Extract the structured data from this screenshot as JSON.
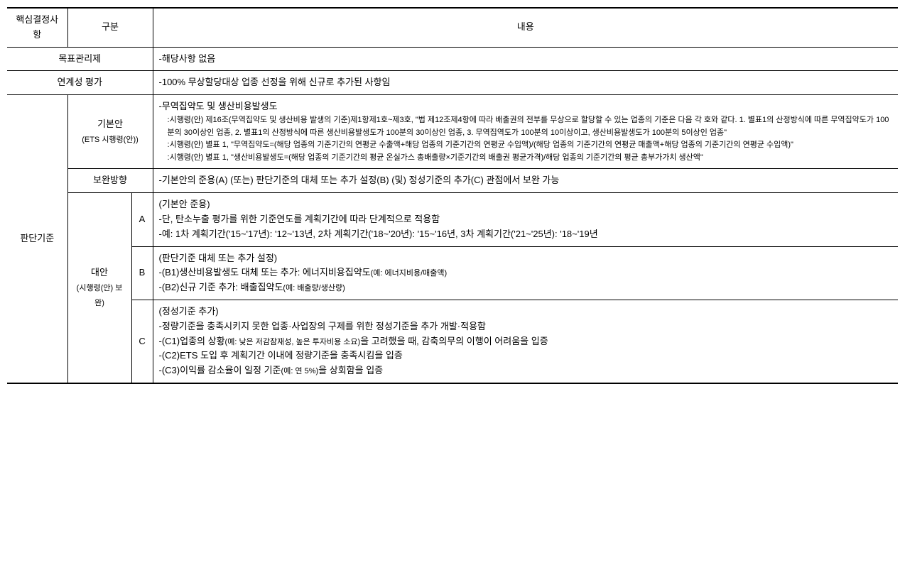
{
  "header": {
    "col1": "핵심결정사항",
    "col2": "구분",
    "col3": "내용"
  },
  "row_target": {
    "label": "목표관리제",
    "content": "-해당사항 없음"
  },
  "row_linkage": {
    "label": "연계성 평가",
    "content": "-100% 무상할당대상 업종 선정을 위해 신규로 추가된 사항임"
  },
  "criteria_label": "판단기준",
  "basic": {
    "label_main": "기본안",
    "label_sub": "(ETS 시행령(안))",
    "line1": "-무역집약도 및 생산비용발생도",
    "line2": ":시행령(안) 제16조(무역집약도 및 생산비용 발생의 기준)제1항제1호~제3호, \"법 제12조제4항에 따라 배출권의 전부를 무상으로 할당할 수 있는 업종의 기준은 다음 각 호와 같다. 1. 별표1의 산정방식에 따른 무역집약도가 100분의 30이상인 업종, 2. 별표1의 산정방식에 따른 생산비용발생도가 100분의 30이상인 업종, 3. 무역집역도가 100분의 10이상이고, 생산비용발생도가 100분의 5이상인 업종\"",
    "line3": ":시행령(안) 별표 1, \"무역집약도=(해당 업종의 기준기간의 연평균 수출액+해당 업종의 기준기간의 연평균 수입액)/(해당 업종의 기준기간의 연평균 매출액+해당 업종의 기준기간의 연평균 수입액)\"",
    "line4": ":시행령(안) 별표 1, \"생산비용발생도=(해당 업종의 기준기간의 평균 온실가스 총배출량×기준기간의 배출권 평균가격)/해당 업종의 기준기간의 평균 총부가가치 생산액\""
  },
  "supplement": {
    "label": "보완방향",
    "content": "-기본안의 준용(A) (또는) 판단기준의 대체 또는 추가 설정(B) (및) 정성기준의 추가(C) 관점에서 보완 가능"
  },
  "alternative": {
    "label_main": "대안",
    "label_sub": "(시행령(안) 보완)",
    "a": {
      "tag": "A",
      "line1": "(기본안 준용)",
      "line2": "-단, 탄소누출 평가를 위한 기준연도를 계획기간에 따라 단계적으로 적용함",
      "line3": "-예: 1차 계획기간('15~'17년): '12~'13년, 2차 계획기간('18~'20년): '15~'16년, 3차 계획기간('21~'25년): '18~'19년"
    },
    "b": {
      "tag": "B",
      "line1": "(판단기준 대체 또는 추가 설정)",
      "line2_prefix": "-(B1)생산비용발생도 대체 또는 추가: 에너지비용집약도",
      "line2_small": "(예: 에너지비용/매출액)",
      "line3_prefix": "-(B2)신규 기준 추가: 배출집약도",
      "line3_small": "(예: 배출량/생산량)"
    },
    "c": {
      "tag": "C",
      "line1": "(정성기준 추가)",
      "line2": "-정량기준을 충족시키지 못한 업종·사업장의 구제를 위한 정성기준을 추가 개발·적용함",
      "line3_prefix": "-(C1)업종의 상황",
      "line3_small": "(예: 낮은 저감잠재성, 높은 투자비용 소요)",
      "line3_suffix": "을 고려했을 때, 감축의무의 이행이 어려움을 입증",
      "line4": "-(C2)ETS 도입 후 계획기간 이내에 정량기준을 충족시킴을 입증",
      "line5_prefix": "-(C3)이익률 감소율이 일정 기준",
      "line5_small": "(예: 연 5%)",
      "line5_suffix": "을 상회함을 입증"
    }
  }
}
